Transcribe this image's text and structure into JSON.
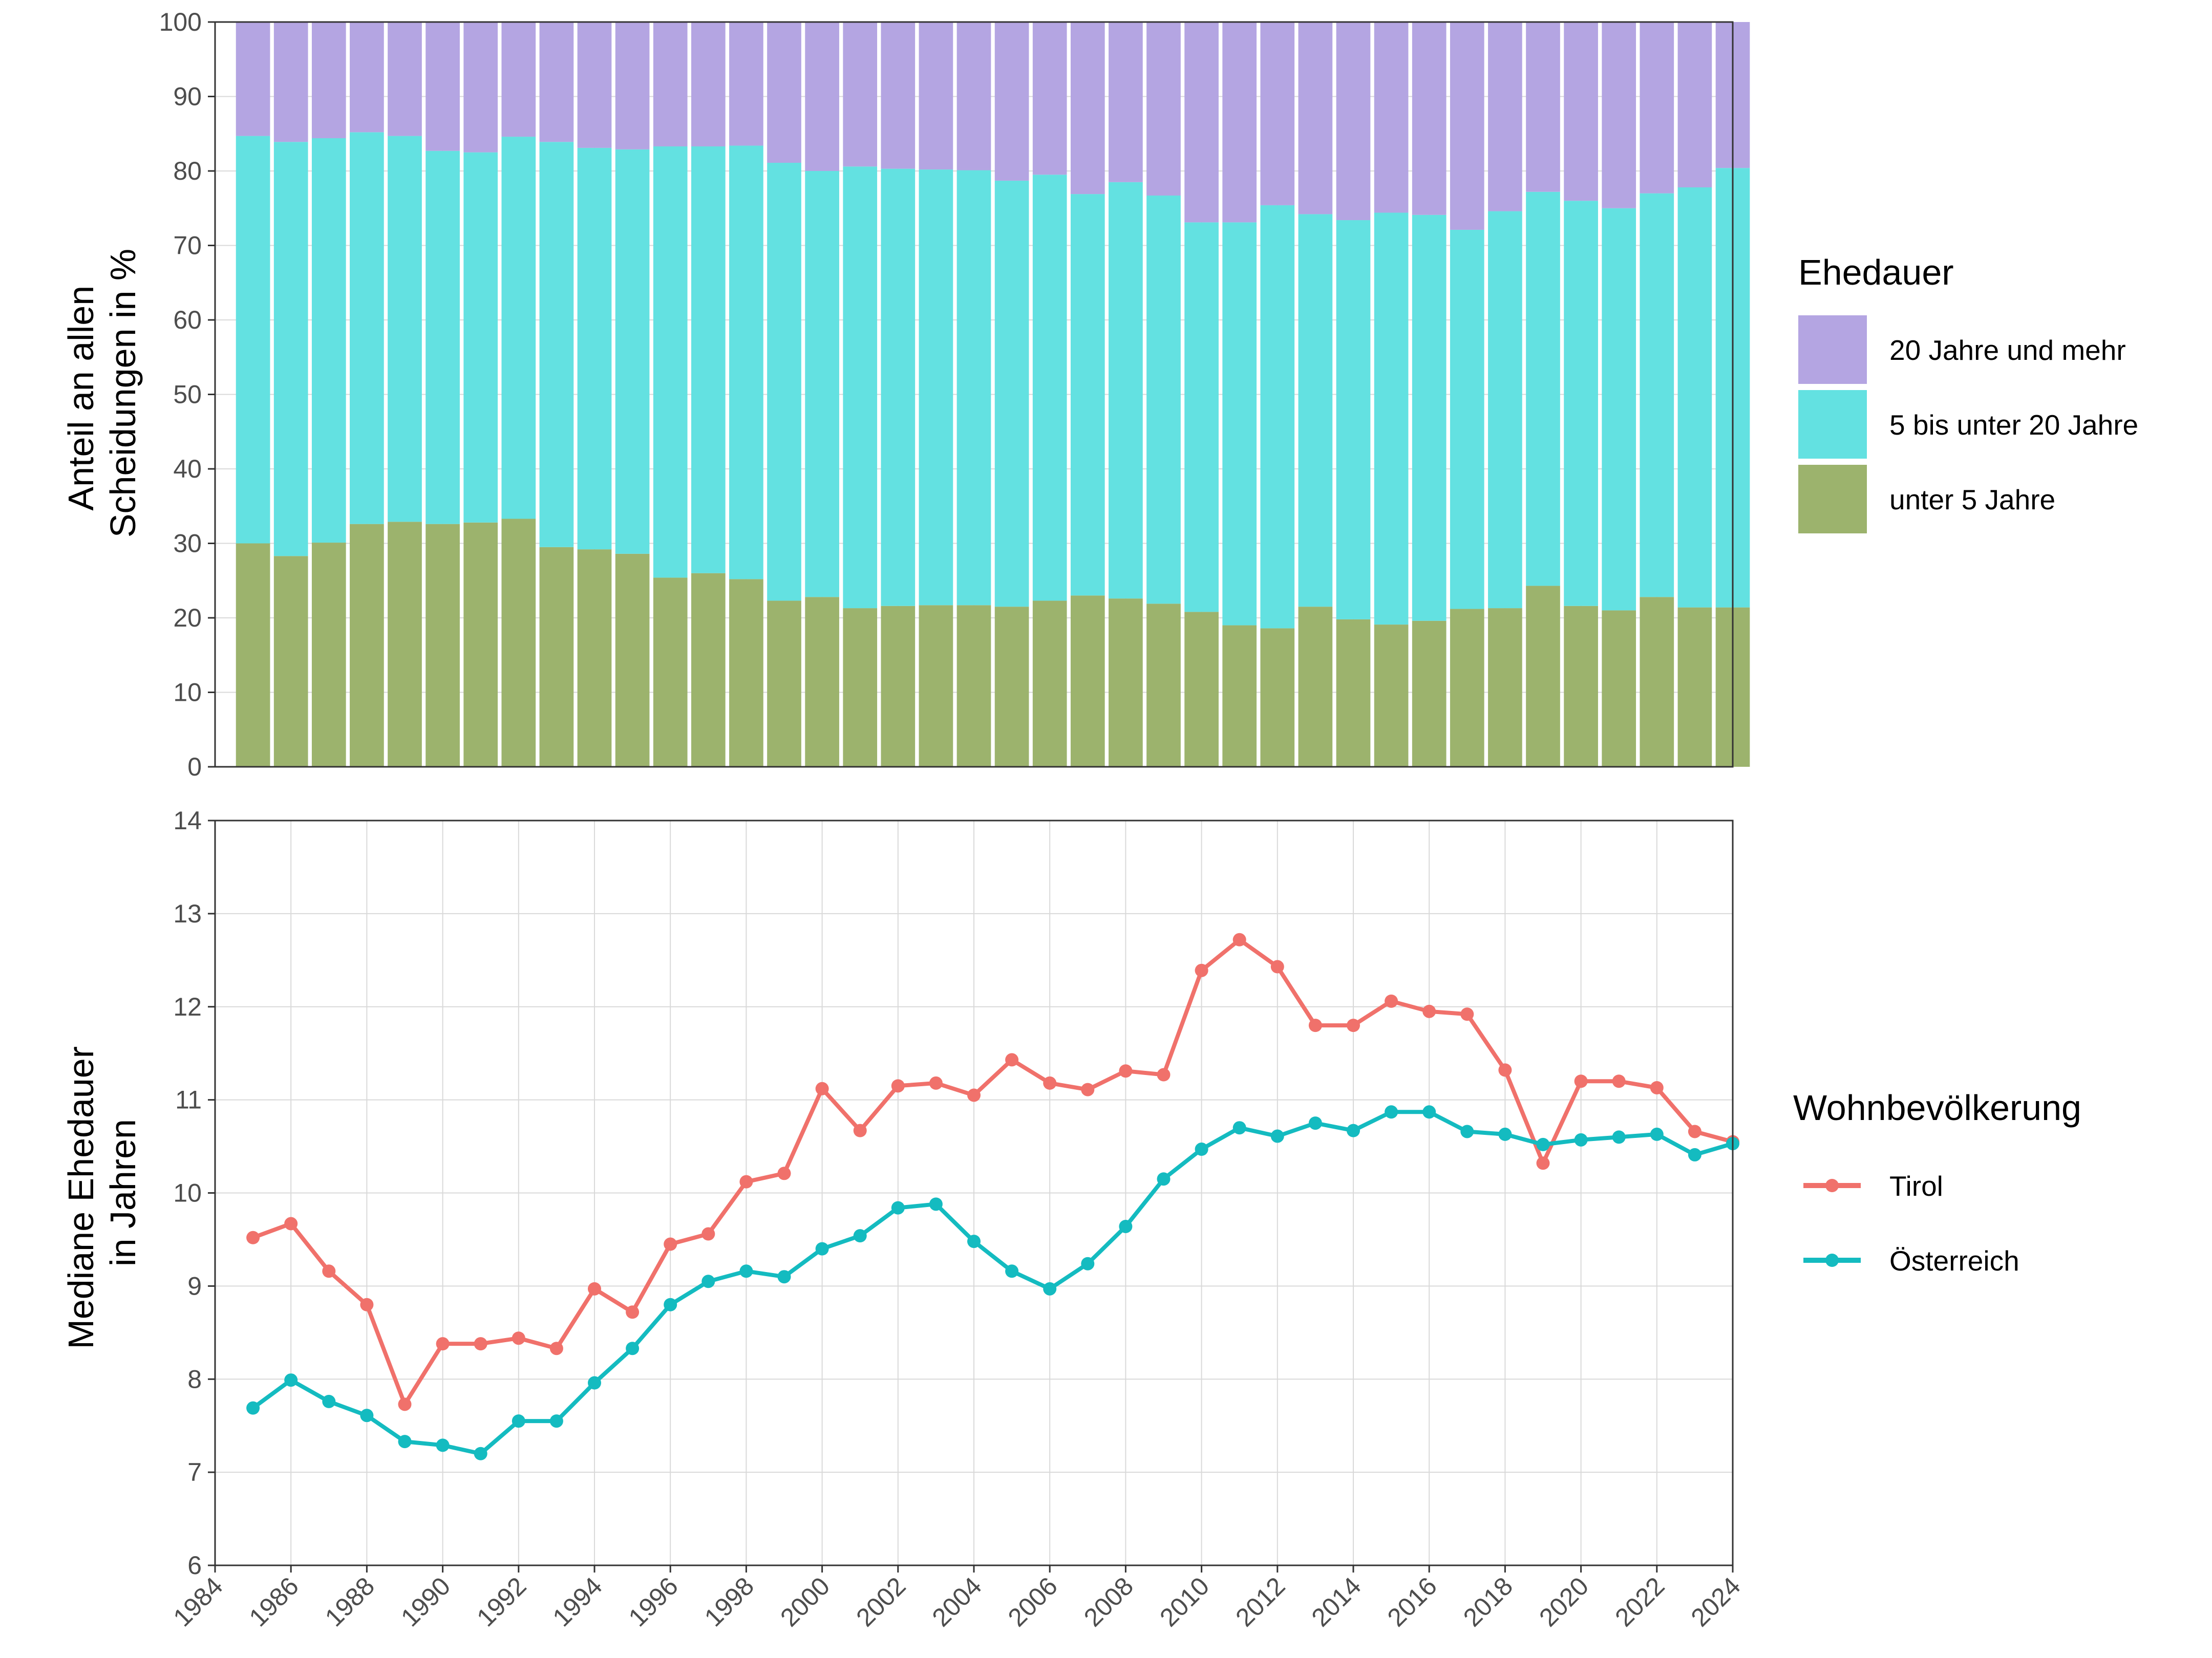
{
  "chart_data": [
    {
      "type": "bar",
      "stacked": true,
      "title": "",
      "xlabel": "",
      "ylabel_lines": [
        "Anteil an allen",
        "Scheidungen in %"
      ],
      "ylim": [
        0,
        100
      ],
      "yticks": [
        "0",
        "10",
        "20",
        "30",
        "40",
        "50",
        "60",
        "70",
        "80",
        "90",
        "100"
      ],
      "grid": true,
      "categories": [
        "1985",
        "1986",
        "1987",
        "1988",
        "1989",
        "1990",
        "1991",
        "1992",
        "1993",
        "1994",
        "1995",
        "1996",
        "1997",
        "1998",
        "1999",
        "2000",
        "2001",
        "2002",
        "2003",
        "2004",
        "2005",
        "2006",
        "2007",
        "2008",
        "2009",
        "2010",
        "2011",
        "2012",
        "2013",
        "2014",
        "2015",
        "2016",
        "2017",
        "2018",
        "2019",
        "2020",
        "2021",
        "2022",
        "2023",
        "2024"
      ],
      "legend": {
        "title": "Ehedauer",
        "position": "right-top"
      },
      "series": [
        {
          "name": "unter 5 Jahre",
          "color": "#9cb36d",
          "values": [
            30.0,
            28.3,
            30.1,
            32.6,
            32.9,
            32.6,
            32.8,
            33.3,
            29.5,
            29.2,
            28.6,
            25.4,
            26.0,
            25.2,
            22.3,
            22.8,
            21.3,
            21.6,
            21.7,
            21.7,
            21.5,
            22.3,
            23.0,
            22.6,
            21.9,
            20.8,
            19.0,
            18.6,
            21.5,
            19.8,
            19.1,
            19.6,
            21.2,
            21.3,
            24.3,
            21.6,
            21.0,
            22.8,
            21.4,
            21.4
          ]
        },
        {
          "name": "5 bis unter 20 Jahre",
          "color": "#63e1e1",
          "values": [
            54.7,
            55.6,
            54.3,
            52.6,
            51.8,
            50.1,
            49.7,
            51.3,
            54.4,
            53.9,
            54.3,
            57.9,
            57.3,
            58.2,
            58.8,
            57.2,
            59.3,
            58.7,
            58.5,
            58.4,
            57.2,
            57.2,
            53.9,
            55.9,
            54.8,
            52.3,
            54.1,
            56.8,
            52.7,
            53.6,
            55.3,
            54.5,
            50.9,
            53.3,
            52.9,
            54.4,
            54.0,
            54.2,
            56.4,
            59.0
          ]
        },
        {
          "name": "20 Jahre und mehr",
          "color": "#b4a5e2",
          "values": [
            15.3,
            16.1,
            15.6,
            14.8,
            15.3,
            17.3,
            17.5,
            15.4,
            16.1,
            16.9,
            17.1,
            16.7,
            16.7,
            16.6,
            18.9,
            20.0,
            19.4,
            19.7,
            19.8,
            19.9,
            21.3,
            20.5,
            23.1,
            21.5,
            23.3,
            26.9,
            26.9,
            24.6,
            25.8,
            26.6,
            25.6,
            25.9,
            27.9,
            25.4,
            22.8,
            24.0,
            25.0,
            23.0,
            22.2,
            19.6
          ]
        }
      ]
    },
    {
      "type": "line",
      "title": "",
      "xlabel": "",
      "ylabel_lines": [
        "Mediane Ehedauer",
        "in Jahren"
      ],
      "ylim": [
        6,
        14
      ],
      "xlim": [
        1984,
        2024
      ],
      "yticks": [
        "6",
        "7",
        "8",
        "9",
        "10",
        "11",
        "12",
        "13",
        "14"
      ],
      "xticks": [
        "1984",
        "1986",
        "1988",
        "1990",
        "1992",
        "1994",
        "1996",
        "1998",
        "2000",
        "2002",
        "2004",
        "2006",
        "2008",
        "2010",
        "2012",
        "2014",
        "2016",
        "2018",
        "2020",
        "2022",
        "2024"
      ],
      "grid": true,
      "x": [
        1985,
        1986,
        1987,
        1988,
        1989,
        1990,
        1991,
        1992,
        1993,
        1994,
        1995,
        1996,
        1997,
        1998,
        1999,
        2000,
        2001,
        2002,
        2003,
        2004,
        2005,
        2006,
        2007,
        2008,
        2009,
        2010,
        2011,
        2012,
        2013,
        2014,
        2015,
        2016,
        2017,
        2018,
        2019,
        2020,
        2021,
        2022,
        2023,
        2024
      ],
      "legend": {
        "title": "Wohnbevölkerung",
        "position": "right-middle"
      },
      "series": [
        {
          "name": "Tirol",
          "color": "#f0716b",
          "values": [
            9.52,
            9.67,
            9.16,
            8.8,
            7.73,
            8.38,
            8.38,
            8.44,
            8.33,
            8.97,
            8.72,
            9.45,
            9.56,
            10.12,
            10.21,
            11.12,
            10.67,
            11.15,
            11.18,
            11.05,
            11.43,
            11.18,
            11.11,
            11.31,
            11.27,
            12.39,
            12.72,
            12.43,
            11.8,
            11.8,
            12.06,
            11.95,
            11.92,
            11.32,
            10.32,
            11.2,
            11.2,
            11.13,
            10.66,
            10.55
          ]
        },
        {
          "name": "Österreich",
          "color": "#14bbc0",
          "values": [
            7.69,
            7.99,
            7.76,
            7.61,
            7.33,
            7.29,
            7.2,
            7.55,
            7.55,
            7.96,
            8.33,
            8.8,
            9.05,
            9.16,
            9.1,
            9.4,
            9.54,
            9.84,
            9.88,
            9.48,
            9.16,
            8.97,
            9.24,
            9.64,
            10.15,
            10.47,
            10.7,
            10.61,
            10.75,
            10.67,
            10.87,
            10.87,
            10.66,
            10.63,
            10.52,
            10.57,
            10.6,
            10.63,
            10.41,
            10.53
          ]
        }
      ]
    }
  ]
}
